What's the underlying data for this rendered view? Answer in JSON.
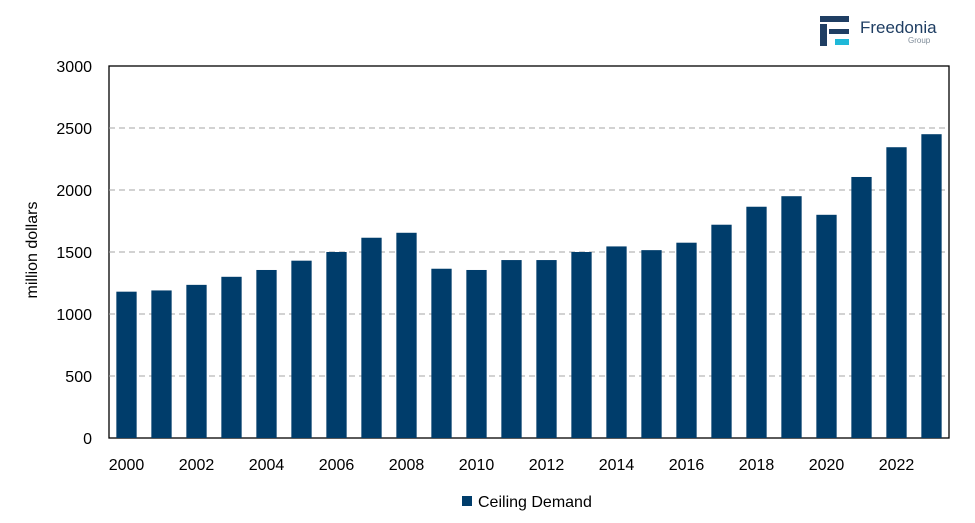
{
  "logo": {
    "name": "Freedonia",
    "sub": "Group",
    "dark_color": "#1f3e63",
    "accent_color": "#1fb8d8"
  },
  "chart_data": {
    "type": "bar",
    "title": "",
    "xlabel": "",
    "ylabel": "million dollars",
    "ylim": [
      0,
      3000
    ],
    "yticks": [
      0,
      500,
      1000,
      1500,
      2000,
      2500,
      3000
    ],
    "categories": [
      "2000",
      "2001",
      "2002",
      "2003",
      "2004",
      "2005",
      "2006",
      "2007",
      "2008",
      "2009",
      "2010",
      "2011",
      "2012",
      "2013",
      "2014",
      "2015",
      "2016",
      "2017",
      "2018",
      "2019",
      "2020",
      "2021",
      "2022",
      "2023"
    ],
    "x_tick_labels": [
      "2000",
      "2002",
      "2004",
      "2006",
      "2008",
      "2010",
      "2012",
      "2014",
      "2016",
      "2018",
      "2020",
      "2022"
    ],
    "series": [
      {
        "name": "Ceiling Demand",
        "color": "#003d6b",
        "values": [
          1180,
          1190,
          1235,
          1300,
          1355,
          1430,
          1500,
          1615,
          1655,
          1365,
          1355,
          1435,
          1435,
          1500,
          1545,
          1515,
          1575,
          1720,
          1865,
          1950,
          1800,
          2105,
          2345,
          2450
        ]
      }
    ],
    "grid": true,
    "grid_style": "dashed horizontal",
    "legend_position": "bottom"
  }
}
